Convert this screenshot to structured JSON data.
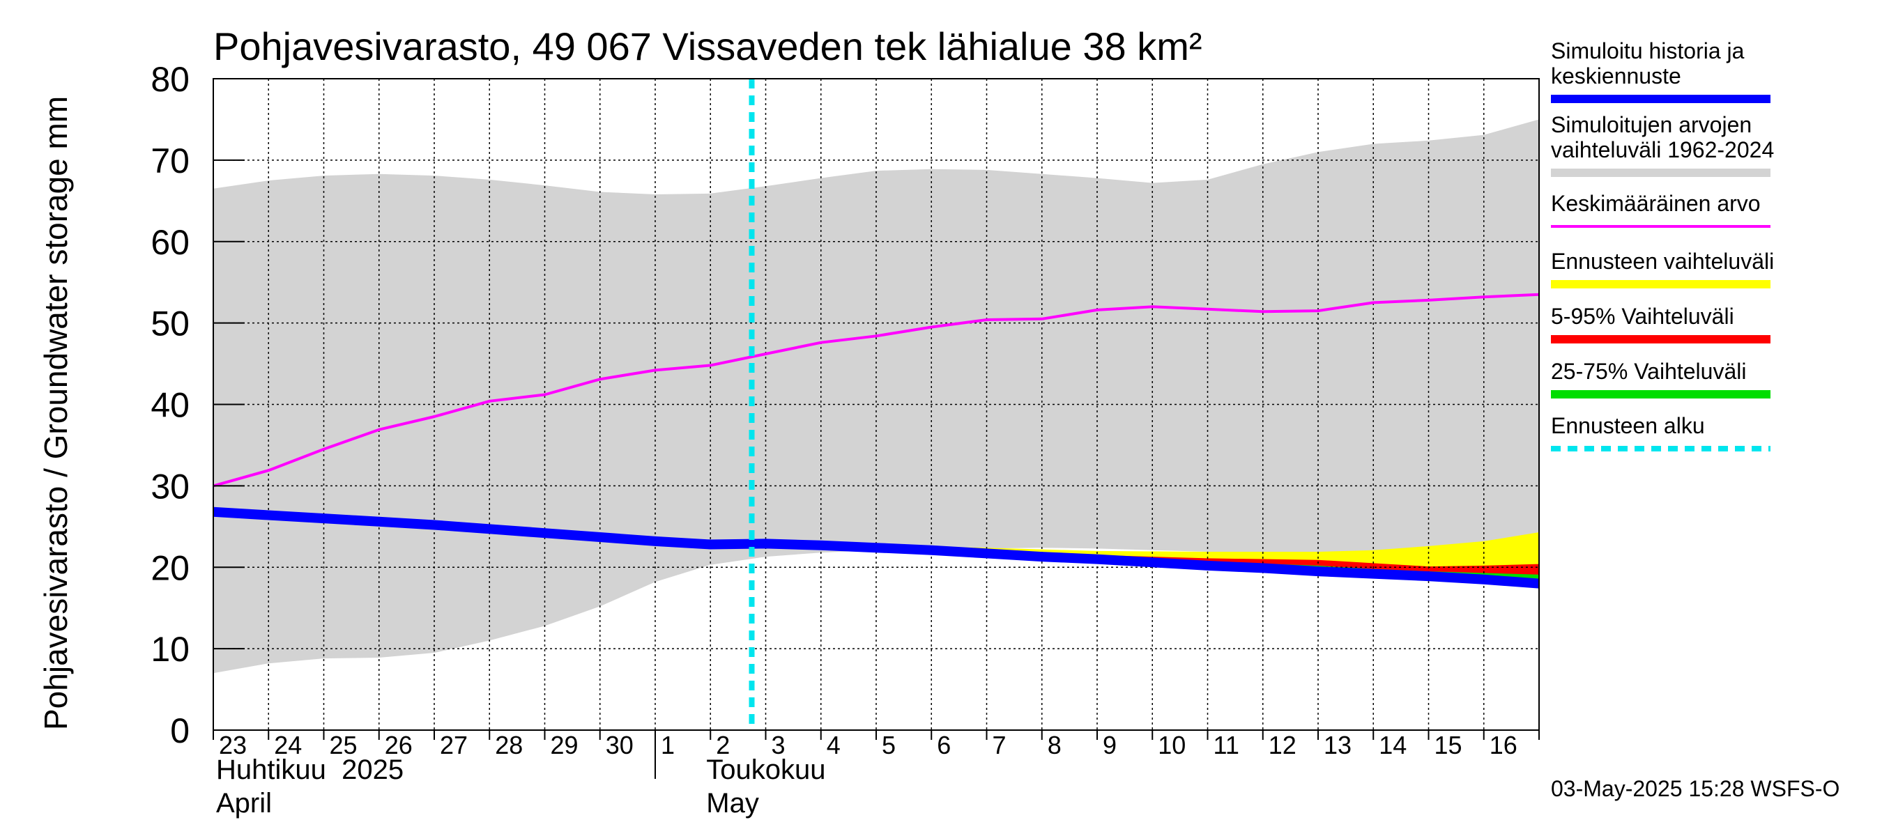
{
  "chart_data": {
    "type": "area",
    "title": "Pohjavesivarasto, 49 067 Vissaveden tek lähialue 38 km²",
    "ylabel": "Pohjavesivarasto / Groundwater storage   mm",
    "ylim": [
      0,
      80
    ],
    "yticks": [
      0,
      10,
      20,
      30,
      40,
      50,
      60,
      70,
      80
    ],
    "grid": true,
    "x_day_labels": [
      "23",
      "24",
      "25",
      "26",
      "27",
      "28",
      "29",
      "30",
      "1",
      "2",
      "3",
      "4",
      "5",
      "6",
      "7",
      "8",
      "9",
      "10",
      "11",
      "12",
      "13",
      "14",
      "15",
      "16"
    ],
    "month_labels": [
      {
        "fi": "Huhtikuu  2025",
        "en": "April"
      },
      {
        "fi": "Toukokuu",
        "en": "May"
      }
    ],
    "x_dates": [
      "2025-04-23",
      "2025-04-24",
      "2025-04-25",
      "2025-04-26",
      "2025-04-27",
      "2025-04-28",
      "2025-04-29",
      "2025-04-30",
      "2025-05-01",
      "2025-05-02",
      "2025-05-03",
      "2025-05-04",
      "2025-05-05",
      "2025-05-06",
      "2025-05-07",
      "2025-05-08",
      "2025-05-09",
      "2025-05-10",
      "2025-05-11",
      "2025-05-12",
      "2025-05-13",
      "2025-05-14",
      "2025-05-15",
      "2025-05-16",
      "2025-05-17"
    ],
    "forecast_start_date": "2025-05-03",
    "series": [
      {
        "name": "Simuloitujen arvojen vaihteluväli 1962-2024",
        "color": "#d3d3d3",
        "kind": "band",
        "upper": [
          66.5,
          67.5,
          68.1,
          68.3,
          68.1,
          67.6,
          66.9,
          66.1,
          65.8,
          65.9,
          66.8,
          67.8,
          68.7,
          68.9,
          68.8,
          68.3,
          67.8,
          67.2,
          67.6,
          69.5,
          71.0,
          72.0,
          72.4,
          73.1,
          75.0
        ],
        "lower": [
          7.0,
          8.2,
          8.8,
          8.9,
          9.5,
          11.0,
          12.8,
          15.2,
          18.2,
          20.3,
          21.3,
          21.8,
          22.1,
          22.2,
          22.3,
          22.4,
          22.3,
          22.1,
          21.9,
          21.6,
          21.2,
          21.0,
          20.7,
          20.4,
          20.1
        ]
      },
      {
        "name": "Ennusteen vaihteluväli",
        "color": "#ffff00",
        "kind": "band",
        "dates": [
          "2025-05-03",
          "2025-05-05",
          "2025-05-07",
          "2025-05-09",
          "2025-05-11",
          "2025-05-13",
          "2025-05-14",
          "2025-05-15",
          "2025-05-16",
          "2025-05-17"
        ],
        "upper": [
          23.0,
          22.7,
          22.4,
          22.0,
          21.9,
          21.9,
          22.1,
          22.6,
          23.2,
          24.3
        ],
        "lower": [
          22.9,
          22.3,
          21.6,
          20.8,
          20.2,
          19.6,
          19.2,
          18.9,
          18.5,
          18.0
        ]
      },
      {
        "name": "5-95% Vaihteluväli",
        "color": "#ff0000",
        "kind": "band",
        "dates": [
          "2025-05-03",
          "2025-05-05",
          "2025-05-07",
          "2025-05-09",
          "2025-05-11",
          "2025-05-13",
          "2025-05-14",
          "2025-05-15",
          "2025-05-16",
          "2025-05-17"
        ],
        "upper": [
          22.9,
          22.6,
          22.1,
          21.5,
          21.1,
          20.9,
          20.5,
          20.1,
          20.2,
          20.4
        ],
        "lower": [
          22.9,
          22.3,
          21.6,
          20.8,
          20.2,
          19.6,
          19.2,
          18.9,
          18.5,
          18.0
        ]
      },
      {
        "name": "25-75% Vaihteluväli",
        "color": "#00dd00",
        "kind": "band",
        "dates": [
          "2025-05-03",
          "2025-05-05",
          "2025-05-07",
          "2025-05-09",
          "2025-05-11",
          "2025-05-13",
          "2025-05-14",
          "2025-05-15",
          "2025-05-16",
          "2025-05-17"
        ],
        "upper": [
          22.9,
          22.5,
          21.9,
          21.2,
          20.7,
          20.2,
          19.8,
          19.5,
          19.3,
          19.1
        ],
        "lower": [
          22.9,
          22.4,
          21.7,
          20.9,
          20.4,
          19.8,
          19.4,
          19.1,
          18.8,
          18.5
        ]
      },
      {
        "name": "Keskimääräinen arvo",
        "color": "#ff00ff",
        "kind": "line",
        "values": [
          30.0,
          31.9,
          34.5,
          36.9,
          38.5,
          40.4,
          41.2,
          43.1,
          44.2,
          44.8,
          46.2,
          47.6,
          48.4,
          49.5,
          50.4,
          50.5,
          51.6,
          52.0,
          51.7,
          51.4,
          51.5,
          52.5,
          52.8,
          53.2,
          53.5
        ]
      },
      {
        "name": "Simuloitu historia ja keskiennuste",
        "color": "#0000ff",
        "kind": "line",
        "values": [
          26.8,
          26.4,
          26.0,
          25.6,
          25.2,
          24.7,
          24.2,
          23.7,
          23.2,
          22.8,
          22.9,
          22.7,
          22.4,
          22.1,
          21.7,
          21.3,
          21.0,
          20.6,
          20.2,
          19.9,
          19.5,
          19.2,
          18.9,
          18.5,
          18.0
        ]
      }
    ],
    "legend_placement": "right",
    "legend": [
      {
        "label": "Simuloitu historia ja keskiennuste",
        "color": "#0000ff",
        "style": "thick"
      },
      {
        "label": "Simuloitujen arvojen vaihteluväli 1962-2024",
        "color": "#d3d3d3",
        "style": "thick"
      },
      {
        "label": "Keskimääräinen arvo",
        "color": "#ff00ff",
        "style": "thin"
      },
      {
        "label": "Ennusteen vaihteluväli",
        "color": "#ffff00",
        "style": "thick"
      },
      {
        "label": "5-95% Vaihteluväli",
        "color": "#ff0000",
        "style": "thick"
      },
      {
        "label": "25-75% Vaihteluväli",
        "color": "#00dd00",
        "style": "thick"
      },
      {
        "label": "Ennusteen alku",
        "color": "#00e5ee",
        "style": "dashed"
      }
    ],
    "timestamp": "03-May-2025 15:28 WSFS-O"
  }
}
